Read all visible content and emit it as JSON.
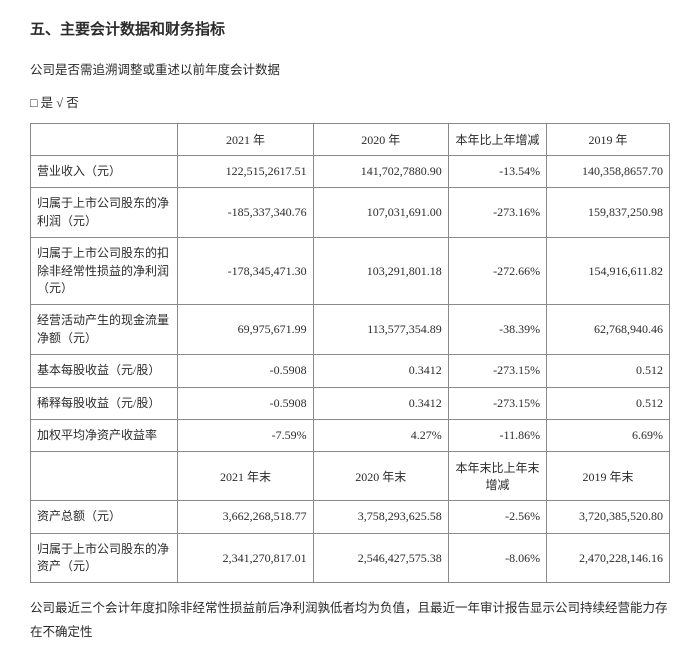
{
  "heading": "五、主要会计数据和财务指标",
  "intro": "公司是否需追溯调整或重述以前年度会计数据",
  "option": "□ 是  √ 否",
  "table": {
    "header1": [
      "",
      "2021 年",
      "2020 年",
      "本年比上年增减",
      "2019 年"
    ],
    "rows1": [
      {
        "label": "营业收入（元）",
        "c1": "122,515,2617.51",
        "c2": "141,702,7880.90",
        "c3": "-13.54%",
        "c4": "140,358,8657.70"
      },
      {
        "label": "归属于上市公司股东的净利润（元）",
        "c1": "-185,337,340.76",
        "c2": "107,031,691.00",
        "c3": "-273.16%",
        "c4": "159,837,250.98"
      },
      {
        "label": "归属于上市公司股东的扣除非经常性损益的净利润（元）",
        "c1": "-178,345,471.30",
        "c2": "103,291,801.18",
        "c3": "-272.66%",
        "c4": "154,916,611.82"
      },
      {
        "label": "经营活动产生的现金流量净额（元）",
        "c1": "69,975,671.99",
        "c2": "113,577,354.89",
        "c3": "-38.39%",
        "c4": "62,768,940.46"
      },
      {
        "label": "基本每股收益（元/股）",
        "c1": "-0.5908",
        "c2": "0.3412",
        "c3": "-273.15%",
        "c4": "0.512"
      },
      {
        "label": "稀释每股收益（元/股）",
        "c1": "-0.5908",
        "c2": "0.3412",
        "c3": "-273.15%",
        "c4": "0.512"
      },
      {
        "label": "加权平均净资产收益率",
        "c1": "-7.59%",
        "c2": "4.27%",
        "c3": "-11.86%",
        "c4": "6.69%"
      }
    ],
    "header2": [
      "",
      "2021 年末",
      "2020 年末",
      "本年末比上年末增减",
      "2019 年末"
    ],
    "rows2": [
      {
        "label": "资产总额（元）",
        "c1": "3,662,268,518.77",
        "c2": "3,758,293,625.58",
        "c3": "-2.56%",
        "c4": "3,720,385,520.80"
      },
      {
        "label": "归属于上市公司股东的净资产（元）",
        "c1": "2,341,270,817.01",
        "c2": "2,546,427,575.38",
        "c3": "-8.06%",
        "c4": "2,470,228,146.16"
      }
    ]
  },
  "footnote": "公司最近三个会计年度扣除非经常性损益前后净利润孰低者均为负值，且最近一年审计报告显示公司持续经营能力存在不确定性"
}
